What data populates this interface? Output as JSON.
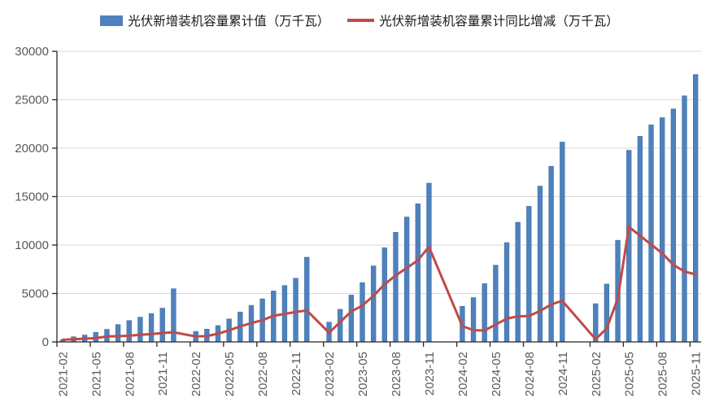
{
  "legend": [
    {
      "label": "光伏新增装机容量累计值（万千瓦）",
      "marker": "bar-swatch",
      "color": "#4F81BD"
    },
    {
      "label": "光伏新增装机容量累计同比增减（万千瓦）",
      "marker": "line-swatch",
      "color": "#BE4B48"
    }
  ],
  "colors": {
    "bar": "#4F81BD",
    "line": "#BE4B48",
    "gridline": "#D9D9D9",
    "axis": "#262626",
    "tick_text": "#595959"
  },
  "chart_data": {
    "type": "bar",
    "title": "",
    "xlabel": "",
    "ylabel": "",
    "ylim": [
      0,
      30000
    ],
    "ytick_step": 5000,
    "xtick_label_every": 3,
    "grid": "horizontal",
    "legend_position": "top",
    "x_label_rotation": -90,
    "categories": [
      "2021-02",
      "2021-03",
      "2021-04",
      "2021-05",
      "2021-06",
      "2021-07",
      "2021-08",
      "2021-09",
      "2021-10",
      "2021-11",
      "2021-12",
      "2022-01",
      "2022-02",
      "2022-03",
      "2022-04",
      "2022-05",
      "2022-06",
      "2022-07",
      "2022-08",
      "2022-09",
      "2022-10",
      "2022-11",
      "2022-12",
      "2023-01",
      "2023-02",
      "2023-03",
      "2023-04",
      "2023-05",
      "2023-06",
      "2023-07",
      "2023-08",
      "2023-09",
      "2023-10",
      "2023-11",
      "2023-12",
      "2024-01",
      "2024-02",
      "2024-03",
      "2024-04",
      "2024-05",
      "2024-06",
      "2024-07",
      "2024-08",
      "2024-09",
      "2024-10",
      "2024-11",
      "2024-12",
      "2025-01",
      "2025-02",
      "2025-03",
      "2025-04",
      "2025-05",
      "2025-06",
      "2025-07",
      "2025-08",
      "2025-09",
      "2025-10",
      "2025-11"
    ],
    "series": [
      {
        "name": "光伏新增装机容量累计值（万千瓦）",
        "type": "bar",
        "color": "#4F81BD",
        "values": [
          200,
          533,
          708,
          990,
          1301,
          1793,
          2205,
          2556,
          2931,
          3483,
          5488,
          null,
          1086,
          1321,
          1688,
          2371,
          3088,
          3773,
          4447,
          5260,
          5824,
          6571,
          8741,
          null,
          2037,
          3366,
          4831,
          6121,
          7842,
          9716,
          11316,
          12894,
          14256,
          16388,
          null,
          null,
          3672,
          4574,
          6011,
          7915,
          10248,
          12353,
          13999,
          16088,
          18130,
          20630,
          null,
          null,
          3947,
          5971,
          10493,
          19785,
          21221,
          22400,
          23150,
          24050,
          25400,
          27600
        ]
      },
      {
        "name": "光伏新增装机容量累计同比增减（万千瓦）",
        "type": "line",
        "color": "#BE4B48",
        "values": [
          220,
          280,
          340,
          390,
          560,
          590,
          640,
          730,
          810,
          920,
          1000,
          null,
          560,
          600,
          850,
          1200,
          1600,
          1950,
          2240,
          2700,
          2890,
          3090,
          3250,
          null,
          950,
          2045,
          3143,
          3750,
          4754,
          5943,
          6869,
          7634,
          8432,
          9817,
          null,
          null,
          1635,
          1208,
          1180,
          1794,
          2406,
          2637,
          2683,
          3194,
          3874,
          4242,
          null,
          null,
          275,
          1397,
          4482,
          11870,
          10973,
          10047,
          9151,
          7962,
          7270,
          6970
        ]
      }
    ]
  }
}
